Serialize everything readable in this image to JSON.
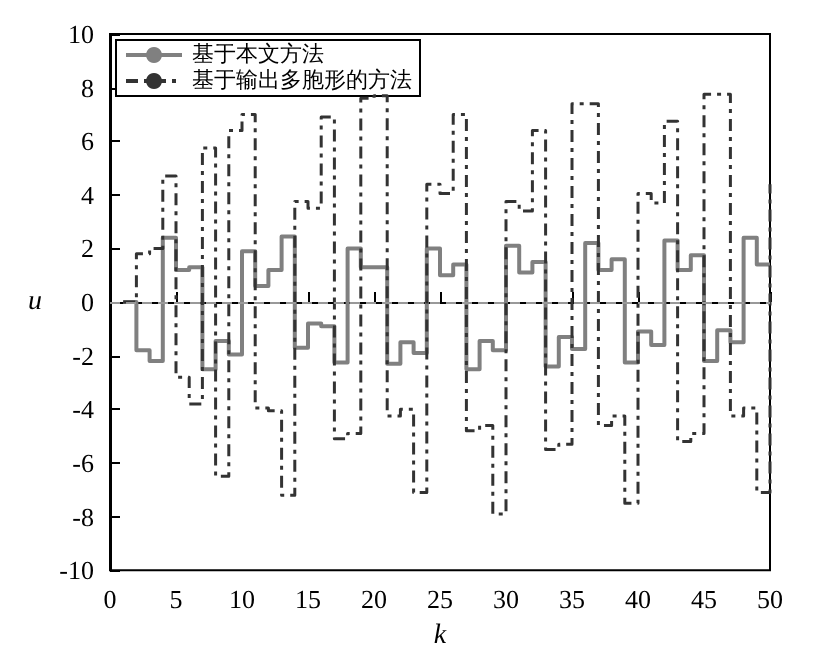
{
  "chart_data": {
    "type": "step",
    "xlabel": "k",
    "ylabel": "u",
    "xlim": [
      0,
      50
    ],
    "xticks": [
      0,
      5,
      10,
      15,
      20,
      25,
      30,
      35,
      40,
      45,
      50
    ],
    "ylim": [
      -10,
      10
    ],
    "yticks": [
      -10,
      -8,
      -6,
      -4,
      -2,
      0,
      2,
      4,
      6,
      8,
      10
    ],
    "x": [
      1,
      2,
      3,
      4,
      5,
      6,
      7,
      8,
      9,
      10,
      11,
      12,
      13,
      14,
      15,
      16,
      17,
      18,
      19,
      20,
      21,
      22,
      23,
      24,
      25,
      26,
      27,
      28,
      29,
      30,
      31,
      32,
      33,
      34,
      35,
      36,
      37,
      38,
      39,
      40,
      41,
      42,
      43,
      44,
      45,
      46,
      47,
      48,
      49,
      50
    ],
    "series": [
      {
        "name": "基于本文方法",
        "color": "#808080",
        "line_style": "solid",
        "values": [
          0,
          -1.8,
          -2.2,
          2.4,
          1.2,
          1.3,
          -2.5,
          -1.45,
          -1.95,
          1.9,
          0.6,
          1.2,
          2.45,
          -1.7,
          -0.8,
          -0.9,
          -2.25,
          2.0,
          1.3,
          1.3,
          -2.3,
          -1.5,
          -1.9,
          2.0,
          1.0,
          1.4,
          -2.5,
          -1.45,
          -1.8,
          2.1,
          1.1,
          1.5,
          -2.4,
          -1.3,
          -1.75,
          2.2,
          1.2,
          1.6,
          -2.25,
          -1.1,
          -1.6,
          2.3,
          1.2,
          1.75,
          -2.2,
          -1.05,
          -1.5,
          2.4,
          1.4,
          1.4
        ]
      },
      {
        "name": "基于输出多胞形的方法",
        "color": "#333333",
        "line_style": "dashed",
        "values": [
          0,
          1.8,
          2.0,
          4.7,
          -2.8,
          -3.8,
          5.75,
          -6.5,
          6.4,
          7.0,
          -3.95,
          -4.05,
          -7.2,
          3.75,
          3.5,
          6.9,
          -5.1,
          -4.9,
          7.6,
          7.7,
          -4.25,
          -4.0,
          -7.1,
          4.4,
          4.05,
          7.0,
          -4.8,
          -4.6,
          -7.9,
          3.75,
          3.4,
          6.4,
          -5.5,
          -5.3,
          7.4,
          7.4,
          -4.6,
          -4.25,
          -7.5,
          4.05,
          3.7,
          6.75,
          -5.2,
          -4.9,
          7.75,
          7.75,
          -4.25,
          -3.95,
          -7.1,
          4.4
        ]
      }
    ],
    "ref_lines": [
      {
        "axis": "y",
        "value": 0,
        "label": null,
        "color": "#999999",
        "line_style": "dashed"
      }
    ],
    "legend": "top left",
    "grid": false,
    "marker": "none"
  }
}
